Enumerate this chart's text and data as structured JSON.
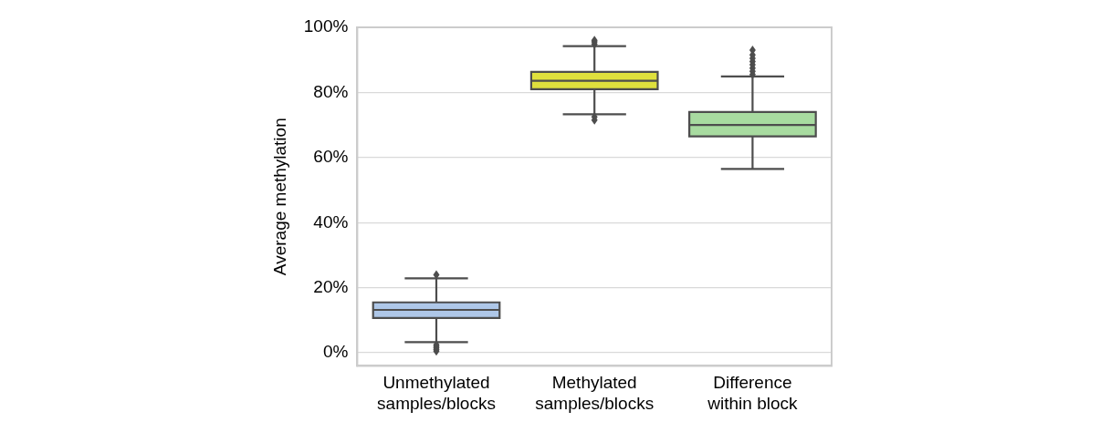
{
  "chart_data": {
    "type": "box",
    "ylabel": "Average methylation",
    "categories": [
      "Unmethylated samples/blocks",
      "Methylated samples/blocks",
      "Difference within block"
    ],
    "colors": [
      "#aec7e8",
      "#dfe03d",
      "#a8dba0"
    ],
    "boxes": [
      {
        "low": 3.3,
        "q1": 10.7,
        "median": 13.2,
        "q3": 15.5,
        "high": 22.9,
        "outliers": [
          0.5,
          1,
          1.5,
          2,
          2.5,
          24
        ]
      },
      {
        "low": 73.3,
        "q1": 81,
        "median": 83.6,
        "q3": 86.3,
        "high": 94.2,
        "outliers": [
          71.5,
          72.5,
          94.8,
          95.5,
          96
        ]
      },
      {
        "low": 56.5,
        "q1": 66.5,
        "median": 70,
        "q3": 74,
        "high": 84.9,
        "outliers": [
          85.5,
          86.5,
          87.5,
          88.5,
          89.5,
          90.5,
          91.5,
          93
        ]
      }
    ],
    "ylim": [
      -4,
      100
    ],
    "yticks": [
      {
        "value": 0,
        "label": "0%"
      },
      {
        "value": 20,
        "label": "20%"
      },
      {
        "value": 40,
        "label": "40%"
      },
      {
        "value": 60,
        "label": "60%"
      },
      {
        "value": 80,
        "label": "80%"
      },
      {
        "value": 100,
        "label": "100%"
      }
    ],
    "grid": "y"
  }
}
